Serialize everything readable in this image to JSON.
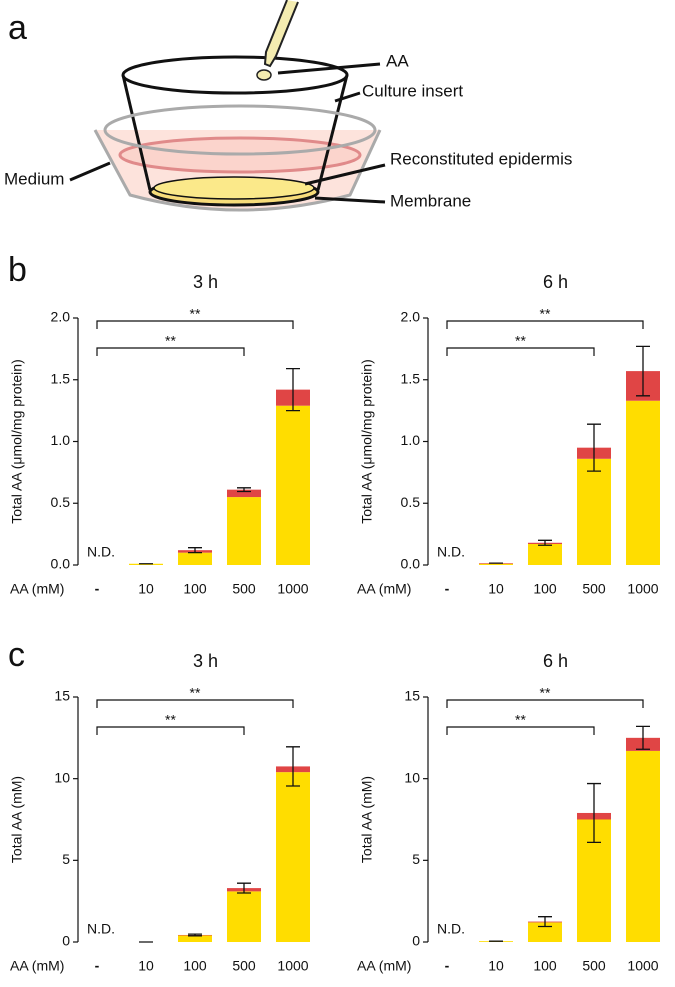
{
  "panel_a": {
    "label": "a",
    "labels": {
      "aa": "AA",
      "insert": "Culture insert",
      "epidermis": "Reconstituted epidermis",
      "membrane": "Membrane",
      "medium": "Medium"
    }
  },
  "panel_b": {
    "label": "b"
  },
  "panel_c": {
    "label": "c"
  },
  "chart_data": [
    {
      "type": "bar",
      "title": "3 h",
      "ylabel": "Total AA (μmol/mg protein)",
      "xlabel": "AA (mM)",
      "categories": [
        "-",
        "10",
        "100",
        "500",
        "1000"
      ],
      "series": [
        {
          "color": "#ffdd00",
          "values": [
            null,
            0.01,
            0.1,
            0.55,
            1.29
          ]
        },
        {
          "color": "#e04545",
          "values": [
            null,
            0,
            0.02,
            0.06,
            0.13
          ]
        }
      ],
      "errors": [
        null,
        0,
        0.02,
        0.015,
        0.17
      ],
      "ylim": [
        0,
        2
      ],
      "yticks": [
        {
          "value": 0,
          "label": "0.0"
        },
        0.5,
        {
          "value": 1,
          "label": "1.0"
        },
        1.5,
        {
          "value": 2,
          "label": "2.0"
        }
      ],
      "annotation": "N.D.",
      "brackets": [
        {
          "from": "-",
          "to": "500",
          "label": "**"
        },
        {
          "from": "-",
          "to": "1000",
          "label": "**"
        }
      ]
    },
    {
      "type": "bar",
      "title": "6 h",
      "ylabel": "Total AA (μmol/mg protein)",
      "xlabel": "AA (mM)",
      "categories": [
        "-",
        "10",
        "100",
        "500",
        "1000"
      ],
      "series": [
        {
          "color": "#ffdd00",
          "values": [
            null,
            0.01,
            0.17,
            0.86,
            1.33
          ]
        },
        {
          "color": "#e04545",
          "values": [
            null,
            0.005,
            0.01,
            0.09,
            0.24
          ]
        }
      ],
      "errors": [
        null,
        0,
        0.02,
        0.19,
        0.2
      ],
      "ylim": [
        0,
        2
      ],
      "yticks": [
        {
          "value": 0,
          "label": "0.0"
        },
        0.5,
        {
          "value": 1,
          "label": "1.0"
        },
        1.5,
        {
          "value": 2,
          "label": "2.0"
        }
      ],
      "annotation": "N.D.",
      "brackets": [
        {
          "from": "-",
          "to": "500",
          "label": "**"
        },
        {
          "from": "-",
          "to": "1000",
          "label": "**"
        }
      ]
    },
    {
      "type": "bar",
      "title": "3 h",
      "ylabel": "Total AA (mM)",
      "xlabel": "AA (mM)",
      "categories": [
        "-",
        "10",
        "100",
        "500",
        "1000"
      ],
      "series": [
        {
          "color": "#ffdd00",
          "values": [
            null,
            0,
            0.4,
            3.1,
            10.4
          ]
        },
        {
          "color": "#e04545",
          "values": [
            null,
            0,
            0.03,
            0.2,
            0.35
          ]
        }
      ],
      "errors": [
        null,
        0,
        0.05,
        0.3,
        1.2
      ],
      "ylim": [
        0,
        15
      ],
      "yticks": [
        0,
        5,
        10,
        15
      ],
      "annotation": "N.D.",
      "brackets": [
        {
          "from": "-",
          "to": "500",
          "label": "**"
        },
        {
          "from": "-",
          "to": "1000",
          "label": "**"
        }
      ]
    },
    {
      "type": "bar",
      "title": "6 h",
      "ylabel": "Total AA (mM)",
      "xlabel": "AA (mM)",
      "categories": [
        "-",
        "10",
        "100",
        "500",
        "1000"
      ],
      "series": [
        {
          "color": "#ffdd00",
          "values": [
            null,
            0.05,
            1.2,
            7.5,
            11.7
          ]
        },
        {
          "color": "#e04545",
          "values": [
            null,
            0,
            0.05,
            0.4,
            0.8
          ]
        }
      ],
      "errors": [
        null,
        0,
        0.3,
        1.8,
        0.7
      ],
      "ylim": [
        0,
        15
      ],
      "yticks": [
        0,
        5,
        10,
        15
      ],
      "annotation": "N.D.",
      "brackets": [
        {
          "from": "-",
          "to": "500",
          "label": "**"
        },
        {
          "from": "-",
          "to": "1000",
          "label": "**"
        }
      ]
    }
  ]
}
